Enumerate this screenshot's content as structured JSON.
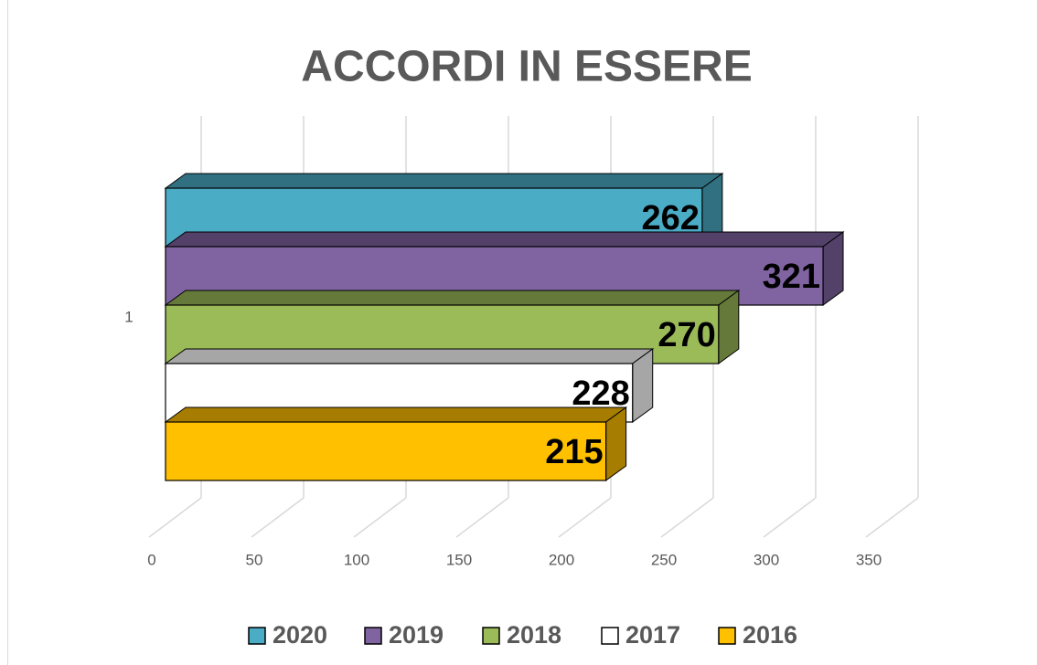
{
  "chart_data": {
    "type": "bar3d",
    "orientation": "horizontal",
    "title": "ACCORDI IN ESSERE",
    "categories": [
      "1"
    ],
    "series": [
      {
        "name": "2020",
        "color": "#4bacc6",
        "values": [
          262
        ]
      },
      {
        "name": "2019",
        "color": "#8064a2",
        "values": [
          321
        ]
      },
      {
        "name": "2018",
        "color": "#9bbb59",
        "values": [
          270
        ]
      },
      {
        "name": "2017",
        "color": "#ffffff",
        "values": [
          228
        ]
      },
      {
        "name": "2016",
        "color": "#ffc000",
        "values": [
          215
        ]
      }
    ],
    "xlim": [
      0,
      350
    ],
    "xticks": [
      0,
      50,
      100,
      150,
      200,
      250,
      300,
      350
    ],
    "grid": true,
    "legend": "bottom"
  }
}
